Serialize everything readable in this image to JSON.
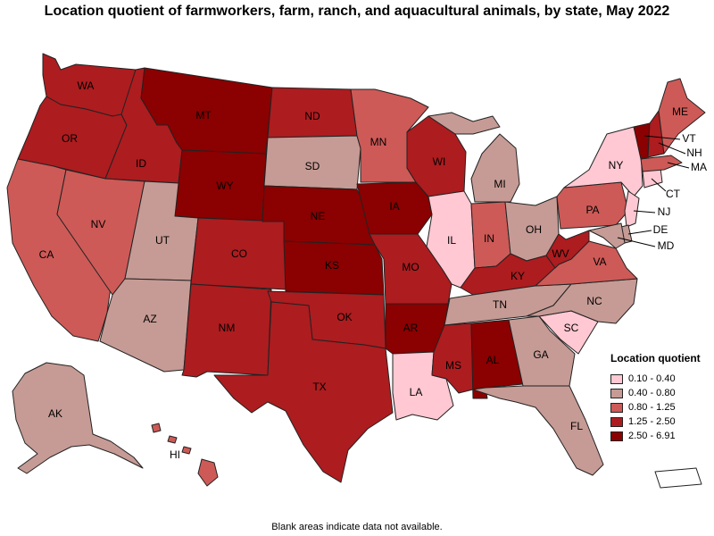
{
  "title": "Location quotient of farmworkers, farm, ranch, and aquacultural animals, by state, May 2022",
  "note": "Blank areas indicate data not available.",
  "legend": {
    "title": "Location quotient",
    "bins": [
      {
        "label": "0.10 - 0.40",
        "color": "#ffc8d2"
      },
      {
        "label": "0.40 - 0.80",
        "color": "#c69b95"
      },
      {
        "label": "0.80 - 1.25",
        "color": "#cd5a57"
      },
      {
        "label": "1.25 - 2.50",
        "color": "#ad1c1f"
      },
      {
        "label": "2.50 - 6.91",
        "color": "#8b0000"
      }
    ]
  },
  "states": {
    "WA": {
      "label": "WA",
      "bin": 3
    },
    "OR": {
      "label": "OR",
      "bin": 3
    },
    "CA": {
      "label": "CA",
      "bin": 2
    },
    "ID": {
      "label": "ID",
      "bin": 3
    },
    "NV": {
      "label": "NV",
      "bin": 2
    },
    "MT": {
      "label": "MT",
      "bin": 4
    },
    "WY": {
      "label": "WY",
      "bin": 4
    },
    "UT": {
      "label": "UT",
      "bin": 1
    },
    "AZ": {
      "label": "AZ",
      "bin": 1
    },
    "CO": {
      "label": "CO",
      "bin": 3
    },
    "NM": {
      "label": "NM",
      "bin": 3
    },
    "ND": {
      "label": "ND",
      "bin": 3
    },
    "SD": {
      "label": "SD",
      "bin": 1
    },
    "NE": {
      "label": "NE",
      "bin": 4
    },
    "KS": {
      "label": "KS",
      "bin": 4
    },
    "OK": {
      "label": "OK",
      "bin": 3
    },
    "TX": {
      "label": "TX",
      "bin": 3
    },
    "MN": {
      "label": "MN",
      "bin": 2
    },
    "IA": {
      "label": "IA",
      "bin": 4
    },
    "MO": {
      "label": "MO",
      "bin": 3
    },
    "AR": {
      "label": "AR",
      "bin": 4
    },
    "LA": {
      "label": "LA",
      "bin": 0
    },
    "WI": {
      "label": "WI",
      "bin": 3
    },
    "IL": {
      "label": "IL",
      "bin": 0
    },
    "MI": {
      "label": "MI",
      "bin": 1
    },
    "IN": {
      "label": "IN",
      "bin": 2
    },
    "OH": {
      "label": "OH",
      "bin": 1
    },
    "KY": {
      "label": "KY",
      "bin": 3
    },
    "TN": {
      "label": "TN",
      "bin": 1
    },
    "MS": {
      "label": "MS",
      "bin": 3
    },
    "AL": {
      "label": "AL",
      "bin": 4
    },
    "GA": {
      "label": "GA",
      "bin": 1
    },
    "FL": {
      "label": "FL",
      "bin": 1
    },
    "SC": {
      "label": "SC",
      "bin": 0
    },
    "NC": {
      "label": "NC",
      "bin": 1
    },
    "VA": {
      "label": "VA",
      "bin": 2
    },
    "WV": {
      "label": "WV",
      "bin": 3
    },
    "PA": {
      "label": "PA",
      "bin": 2
    },
    "NY": {
      "label": "NY",
      "bin": 0
    },
    "ME": {
      "label": "ME",
      "bin": 2
    },
    "VT": {
      "label": "VT",
      "bin": 4
    },
    "NH": {
      "label": "NH",
      "bin": 3
    },
    "MA": {
      "label": "MA",
      "bin": 2
    },
    "CT": {
      "label": "CT",
      "bin": 0
    },
    "NJ": {
      "label": "NJ",
      "bin": 0
    },
    "DE": {
      "label": "DE",
      "bin": 1
    },
    "MD": {
      "label": "MD",
      "bin": 1
    },
    "AK": {
      "label": "AK",
      "bin": 1
    },
    "HI": {
      "label": "HI",
      "bin": 2
    }
  }
}
